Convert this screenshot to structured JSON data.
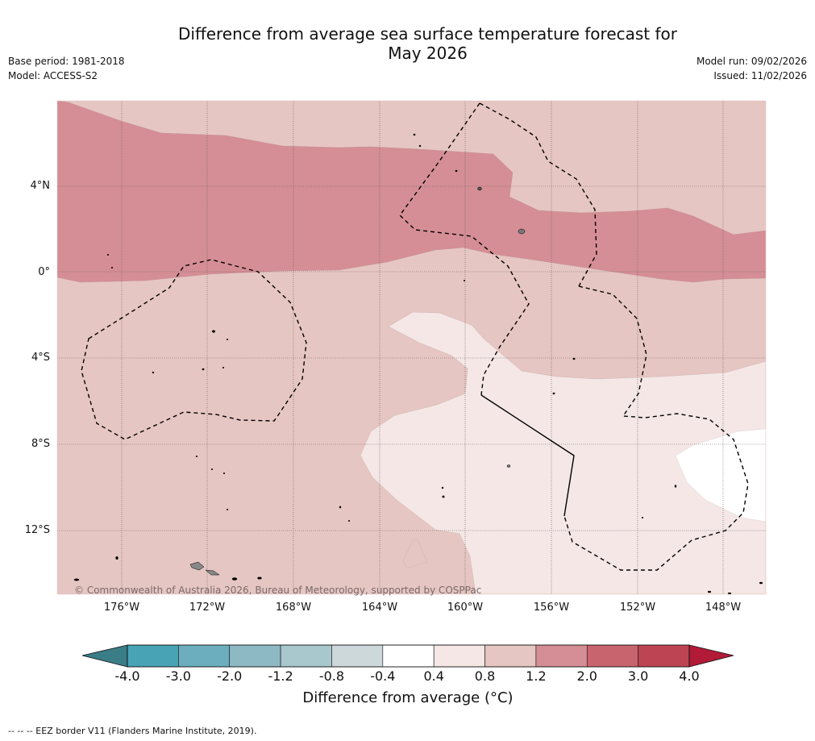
{
  "header": {
    "title_line1": "Difference from average sea surface temperature forecast for",
    "title_line2": "May 2026",
    "base_period": "Base period: 1981-2018",
    "model": "Model: ACCESS-S2",
    "model_run": "Model run: 09/02/2026",
    "issued": "Issued: 11/02/2026"
  },
  "map": {
    "lat_labels": [
      "4°N",
      "0°",
      "4°S",
      "8°S",
      "12°S"
    ],
    "lon_labels": [
      "176°W",
      "172°W",
      "168°W",
      "164°W",
      "160°W",
      "156°W",
      "152°W",
      "148°W"
    ],
    "copyright": "© Commonwealth of Australia 2026, Bureau of Meteorology, supported by COSPPac",
    "colors": {
      "band_1_2_to_2_0": "#d58e95",
      "band_0_8_to_1_2": "#e6c6c2",
      "band_0_4_to_0_8": "#f4e7e6",
      "band_neg0_4_to_0_4": "#ffffff"
    }
  },
  "colorbar": {
    "ticks": [
      "-4.0",
      "-3.0",
      "-2.0",
      "-1.2",
      "-0.8",
      "-0.4",
      "0.4",
      "0.8",
      "1.2",
      "2.0",
      "3.0",
      "4.0"
    ],
    "colors": [
      "#48a4b4",
      "#6caebd",
      "#8db9c5",
      "#a9c8ce",
      "#cdd8da",
      "#ffffff",
      "#f4e7e6",
      "#e6c6c2",
      "#d58e95",
      "#c8646e",
      "#bd4452"
    ],
    "under_color": "#3a7d86",
    "over_color": "#b11b37",
    "title": "Difference from average (°C)"
  },
  "footnote": "--  --  -- EEZ border V11 (Flanders Marine Institute, 2019)."
}
